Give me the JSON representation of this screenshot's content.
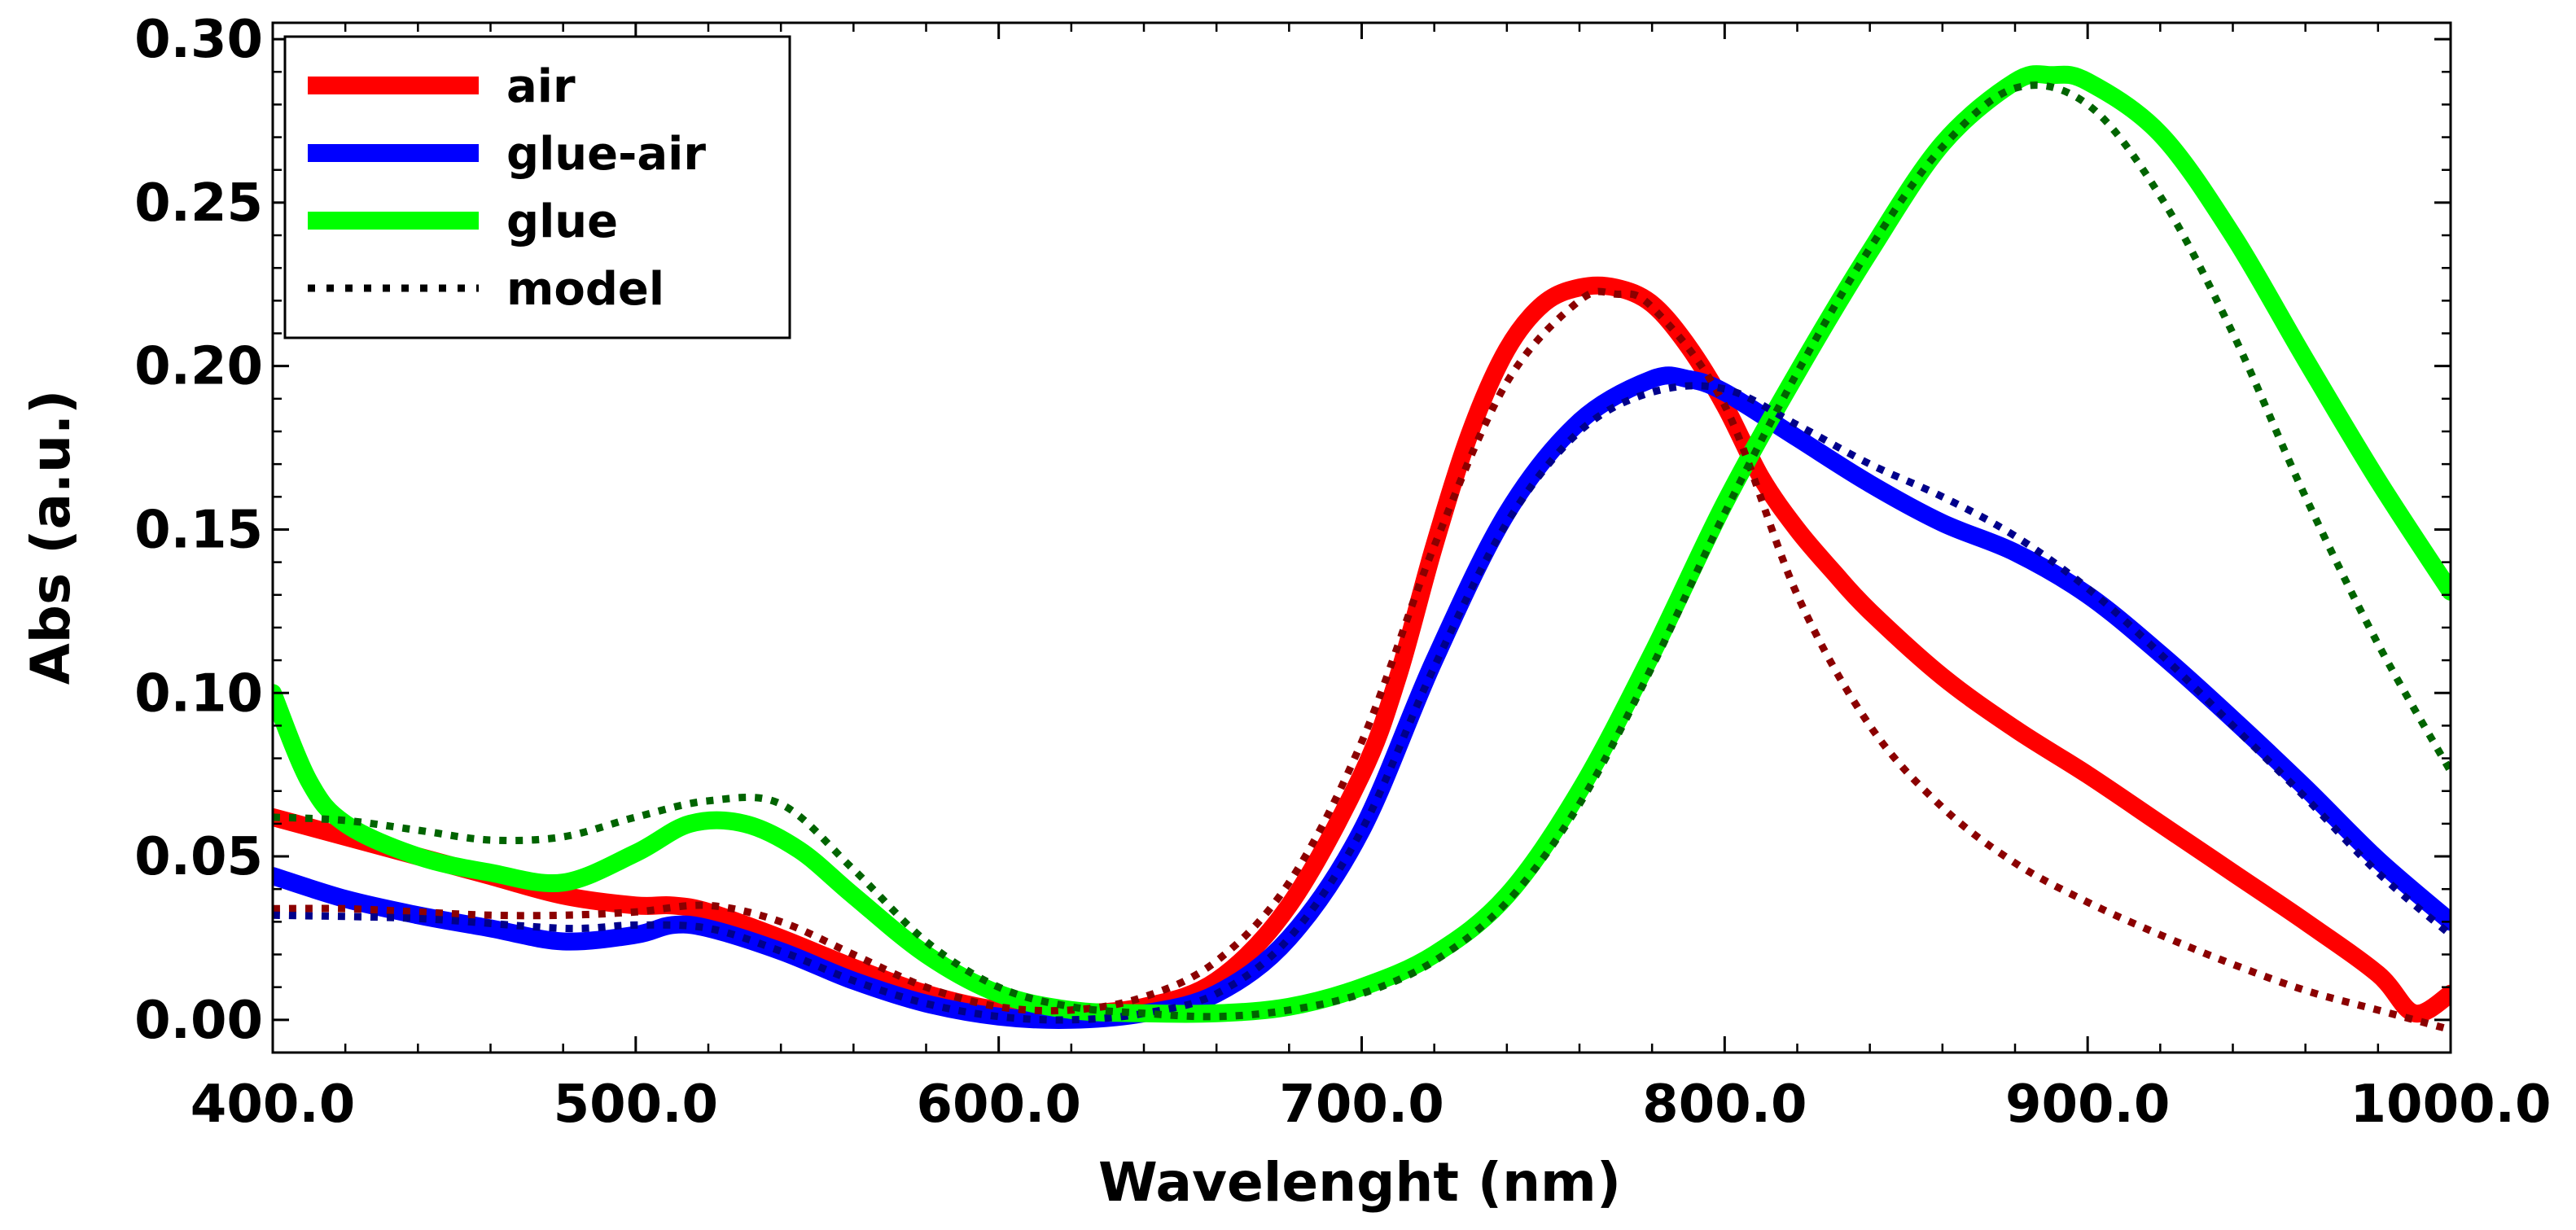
{
  "chart_data": {
    "type": "line",
    "title": "",
    "xlabel": "Wavelenght (nm)",
    "ylabel": "Abs (a.u.)",
    "xlim": [
      400,
      1000
    ],
    "ylim": [
      -0.01,
      0.305
    ],
    "xticks": [
      400,
      500,
      600,
      700,
      800,
      900,
      1000
    ],
    "xtick_labels": [
      "400.0",
      "500.0",
      "600.0",
      "700.0",
      "800.0",
      "900.0",
      "1000.0"
    ],
    "yticks": [
      0.0,
      0.05,
      0.1,
      0.15,
      0.2,
      0.25,
      0.3
    ],
    "ytick_labels": [
      "0.00",
      "0.05",
      "0.10",
      "0.15",
      "0.20",
      "0.25",
      "0.30"
    ],
    "grid": false,
    "legend_position": "top-left",
    "series": [
      {
        "name": "air",
        "color": "#ff0000",
        "style": "solid",
        "points": [
          [
            400,
            0.062
          ],
          [
            420,
            0.056
          ],
          [
            440,
            0.05
          ],
          [
            460,
            0.044
          ],
          [
            480,
            0.038
          ],
          [
            500,
            0.035
          ],
          [
            510,
            0.035
          ],
          [
            520,
            0.033
          ],
          [
            540,
            0.025
          ],
          [
            560,
            0.016
          ],
          [
            580,
            0.008
          ],
          [
            600,
            0.003
          ],
          [
            620,
            0.002
          ],
          [
            640,
            0.004
          ],
          [
            660,
            0.012
          ],
          [
            680,
            0.035
          ],
          [
            700,
            0.075
          ],
          [
            710,
            0.105
          ],
          [
            720,
            0.145
          ],
          [
            730,
            0.18
          ],
          [
            740,
            0.205
          ],
          [
            750,
            0.219
          ],
          [
            760,
            0.224
          ],
          [
            770,
            0.224
          ],
          [
            780,
            0.219
          ],
          [
            790,
            0.206
          ],
          [
            800,
            0.188
          ],
          [
            810,
            0.166
          ],
          [
            820,
            0.15
          ],
          [
            830,
            0.137
          ],
          [
            840,
            0.125
          ],
          [
            860,
            0.105
          ],
          [
            880,
            0.089
          ],
          [
            900,
            0.075
          ],
          [
            920,
            0.06
          ],
          [
            940,
            0.045
          ],
          [
            960,
            0.03
          ],
          [
            980,
            0.014
          ],
          [
            990,
            0.002
          ],
          [
            1000,
            0.008
          ]
        ]
      },
      {
        "name": "glue-air",
        "color": "#0000ff",
        "style": "solid",
        "points": [
          [
            400,
            0.044
          ],
          [
            420,
            0.037
          ],
          [
            440,
            0.032
          ],
          [
            460,
            0.028
          ],
          [
            480,
            0.024
          ],
          [
            500,
            0.026
          ],
          [
            510,
            0.029
          ],
          [
            520,
            0.028
          ],
          [
            540,
            0.021
          ],
          [
            560,
            0.012
          ],
          [
            580,
            0.005
          ],
          [
            600,
            0.001
          ],
          [
            620,
            0.0
          ],
          [
            640,
            0.002
          ],
          [
            660,
            0.008
          ],
          [
            680,
            0.025
          ],
          [
            700,
            0.058
          ],
          [
            720,
            0.11
          ],
          [
            740,
            0.155
          ],
          [
            760,
            0.183
          ],
          [
            780,
            0.196
          ],
          [
            790,
            0.196
          ],
          [
            800,
            0.192
          ],
          [
            820,
            0.178
          ],
          [
            840,
            0.164
          ],
          [
            860,
            0.152
          ],
          [
            880,
            0.143
          ],
          [
            900,
            0.13
          ],
          [
            920,
            0.112
          ],
          [
            940,
            0.092
          ],
          [
            960,
            0.071
          ],
          [
            980,
            0.049
          ],
          [
            1000,
            0.03
          ]
        ]
      },
      {
        "name": "glue",
        "color": "#00ff00",
        "style": "solid",
        "points": [
          [
            400,
            0.1
          ],
          [
            410,
            0.073
          ],
          [
            420,
            0.06
          ],
          [
            440,
            0.05
          ],
          [
            460,
            0.045
          ],
          [
            480,
            0.042
          ],
          [
            500,
            0.051
          ],
          [
            515,
            0.06
          ],
          [
            530,
            0.06
          ],
          [
            545,
            0.052
          ],
          [
            560,
            0.038
          ],
          [
            580,
            0.02
          ],
          [
            600,
            0.008
          ],
          [
            620,
            0.003
          ],
          [
            640,
            0.002
          ],
          [
            660,
            0.002
          ],
          [
            680,
            0.004
          ],
          [
            700,
            0.01
          ],
          [
            720,
            0.02
          ],
          [
            740,
            0.038
          ],
          [
            760,
            0.07
          ],
          [
            780,
            0.112
          ],
          [
            800,
            0.158
          ],
          [
            820,
            0.198
          ],
          [
            840,
            0.235
          ],
          [
            860,
            0.268
          ],
          [
            880,
            0.287
          ],
          [
            890,
            0.289
          ],
          [
            900,
            0.287
          ],
          [
            920,
            0.271
          ],
          [
            940,
            0.24
          ],
          [
            960,
            0.202
          ],
          [
            980,
            0.165
          ],
          [
            1000,
            0.131
          ]
        ]
      },
      {
        "name": "model",
        "color": "#000000",
        "style": "dotted",
        "legend_only": true,
        "points": []
      }
    ],
    "model_fits": [
      {
        "fits": "air",
        "color": "#8b0000",
        "style": "dotted",
        "points": [
          [
            400,
            0.034
          ],
          [
            420,
            0.034
          ],
          [
            440,
            0.033
          ],
          [
            460,
            0.032
          ],
          [
            480,
            0.032
          ],
          [
            500,
            0.033
          ],
          [
            520,
            0.035
          ],
          [
            540,
            0.03
          ],
          [
            560,
            0.02
          ],
          [
            580,
            0.01
          ],
          [
            600,
            0.004
          ],
          [
            620,
            0.003
          ],
          [
            640,
            0.007
          ],
          [
            660,
            0.018
          ],
          [
            680,
            0.042
          ],
          [
            700,
            0.085
          ],
          [
            720,
            0.145
          ],
          [
            740,
            0.195
          ],
          [
            760,
            0.22
          ],
          [
            770,
            0.222
          ],
          [
            780,
            0.218
          ],
          [
            800,
            0.188
          ],
          [
            820,
            0.13
          ],
          [
            840,
            0.09
          ],
          [
            860,
            0.065
          ],
          [
            880,
            0.048
          ],
          [
            900,
            0.036
          ],
          [
            920,
            0.026
          ],
          [
            940,
            0.017
          ],
          [
            960,
            0.009
          ],
          [
            980,
            0.003
          ],
          [
            1000,
            -0.003
          ]
        ]
      },
      {
        "fits": "glue-air",
        "color": "#00008b",
        "style": "dotted",
        "points": [
          [
            400,
            0.032
          ],
          [
            440,
            0.031
          ],
          [
            480,
            0.028
          ],
          [
            500,
            0.029
          ],
          [
            520,
            0.028
          ],
          [
            540,
            0.021
          ],
          [
            560,
            0.012
          ],
          [
            580,
            0.005
          ],
          [
            600,
            0.001
          ],
          [
            620,
            0.0
          ],
          [
            640,
            0.002
          ],
          [
            660,
            0.008
          ],
          [
            680,
            0.025
          ],
          [
            700,
            0.058
          ],
          [
            720,
            0.108
          ],
          [
            740,
            0.152
          ],
          [
            760,
            0.18
          ],
          [
            780,
            0.192
          ],
          [
            800,
            0.193
          ],
          [
            820,
            0.182
          ],
          [
            840,
            0.17
          ],
          [
            860,
            0.16
          ],
          [
            880,
            0.148
          ],
          [
            900,
            0.132
          ],
          [
            920,
            0.112
          ],
          [
            940,
            0.09
          ],
          [
            960,
            0.068
          ],
          [
            980,
            0.045
          ],
          [
            1000,
            0.026
          ]
        ]
      },
      {
        "fits": "glue",
        "color": "#006400",
        "style": "dotted",
        "points": [
          [
            400,
            0.062
          ],
          [
            420,
            0.061
          ],
          [
            440,
            0.058
          ],
          [
            460,
            0.055
          ],
          [
            480,
            0.056
          ],
          [
            500,
            0.062
          ],
          [
            520,
            0.067
          ],
          [
            540,
            0.066
          ],
          [
            560,
            0.046
          ],
          [
            580,
            0.024
          ],
          [
            600,
            0.01
          ],
          [
            620,
            0.004
          ],
          [
            640,
            0.002
          ],
          [
            660,
            0.001
          ],
          [
            680,
            0.003
          ],
          [
            700,
            0.008
          ],
          [
            720,
            0.018
          ],
          [
            740,
            0.036
          ],
          [
            760,
            0.066
          ],
          [
            780,
            0.108
          ],
          [
            800,
            0.155
          ],
          [
            820,
            0.198
          ],
          [
            840,
            0.236
          ],
          [
            860,
            0.267
          ],
          [
            880,
            0.285
          ],
          [
            900,
            0.28
          ],
          [
            920,
            0.252
          ],
          [
            940,
            0.21
          ],
          [
            960,
            0.16
          ],
          [
            980,
            0.115
          ],
          [
            1000,
            0.076
          ]
        ]
      }
    ]
  }
}
